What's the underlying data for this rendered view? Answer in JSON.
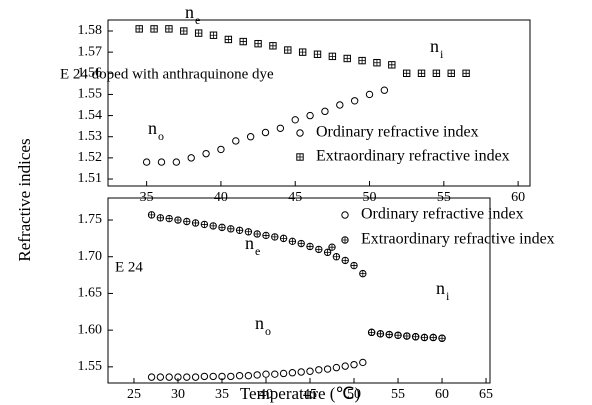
{
  "chart_data": [
    {
      "type": "scatter",
      "ylabel": "Refractive indices",
      "xlim": [
        32.4,
        60.8
      ],
      "xticks": [
        35,
        40,
        45,
        50,
        55,
        60
      ],
      "ylim": [
        1.5067,
        1.5852
      ],
      "yticks": [
        1.51,
        1.52,
        1.53,
        1.54,
        1.55,
        1.56,
        1.57,
        1.58
      ],
      "series": [
        {
          "name": "Ordinary refractive index",
          "marker": "circle",
          "color": "#000000",
          "x": [
            35,
            36,
            37,
            38,
            39,
            40,
            41,
            42,
            43,
            44,
            45,
            46,
            47,
            48,
            49,
            50,
            51
          ],
          "values": [
            1.518,
            1.518,
            1.518,
            1.52,
            1.522,
            1.524,
            1.528,
            1.53,
            1.532,
            1.534,
            1.538,
            1.54,
            1.542,
            1.545,
            1.547,
            1.55,
            1.552
          ]
        },
        {
          "name": "Extraordinary refractive index",
          "marker": "square-plus",
          "color": "#000000",
          "x": [
            34.5,
            35.5,
            36.5,
            37.5,
            38.5,
            39.5,
            40.5,
            41.5,
            42.5,
            43.5,
            44.5,
            45.5,
            46.5,
            47.5,
            48.5,
            49.5,
            50.5,
            51.5,
            52.5,
            53.5,
            54.5,
            55.5,
            56.5
          ],
          "values": [
            1.581,
            1.581,
            1.581,
            1.58,
            1.579,
            1.578,
            1.576,
            1.575,
            1.574,
            1.573,
            1.571,
            1.57,
            1.569,
            1.568,
            1.567,
            1.566,
            1.565,
            1.564,
            1.56,
            1.56,
            1.56,
            1.56,
            1.56
          ]
        }
      ],
      "annotations": [
        {
          "text": "n",
          "sub": "e"
        },
        {
          "text": "n",
          "sub": "o"
        },
        {
          "text": "n",
          "sub": "i"
        },
        {
          "text": "E 24 doped with anthraquinone dye"
        }
      ]
    },
    {
      "type": "scatter",
      "xlabel": "Temperature (℃)",
      "xlim": [
        22.05,
        65.45
      ],
      "xticks": [
        25,
        30,
        35,
        40,
        45,
        50,
        55,
        60,
        65
      ],
      "ylim": [
        1.528,
        1.78
      ],
      "yticks": [
        1.55,
        {
          "value": 1.6,
          "label": "1.60"
        },
        1.65,
        {
          "value": 1.7,
          "label": "1.70"
        },
        1.75
      ],
      "series": [
        {
          "name": "Ordinary refractive index",
          "marker": "circle",
          "color": "#000000",
          "x": [
            27,
            28,
            29,
            30,
            31,
            32,
            33,
            34,
            35,
            36,
            37,
            38,
            39,
            40,
            41,
            42,
            43,
            44,
            45,
            46,
            47,
            48,
            49,
            50,
            51,
            52,
            53,
            54,
            55,
            56,
            57,
            58,
            59,
            60
          ],
          "values": [
            1.536,
            1.536,
            1.536,
            1.536,
            1.536,
            1.536,
            1.537,
            1.537,
            1.537,
            1.537,
            1.538,
            1.538,
            1.539,
            1.54,
            1.54,
            1.541,
            1.542,
            1.543,
            1.544,
            1.546,
            1.547,
            1.549,
            1.551,
            1.553,
            1.556,
            1.597,
            1.595,
            1.594,
            1.593,
            1.592,
            1.591,
            1.59,
            1.59,
            1.589
          ]
        },
        {
          "name": "Extraordinary refractive index",
          "marker": "circle-plus",
          "color": "#000000",
          "x": [
            27,
            28,
            29,
            30,
            31,
            32,
            33,
            34,
            35,
            36,
            37,
            38,
            39,
            40,
            41,
            42,
            43,
            44,
            45,
            46,
            47,
            47.5,
            48,
            49,
            50,
            51,
            52,
            53,
            54,
            55,
            56,
            57,
            58,
            59,
            60
          ],
          "values": [
            1.757,
            1.753,
            1.752,
            1.75,
            1.748,
            1.746,
            1.744,
            1.742,
            1.74,
            1.738,
            1.736,
            1.734,
            1.731,
            1.729,
            1.727,
            1.725,
            1.721,
            1.718,
            1.714,
            1.71,
            1.706,
            1.713,
            1.7,
            1.695,
            1.688,
            1.677,
            1.597,
            1.595,
            1.594,
            1.593,
            1.592,
            1.591,
            1.59,
            1.59,
            1.589
          ]
        }
      ],
      "annotations": [
        {
          "text": "n",
          "sub": "e"
        },
        {
          "text": "n",
          "sub": "o"
        },
        {
          "text": "n",
          "sub": "i"
        },
        {
          "text": "E 24"
        }
      ]
    }
  ]
}
